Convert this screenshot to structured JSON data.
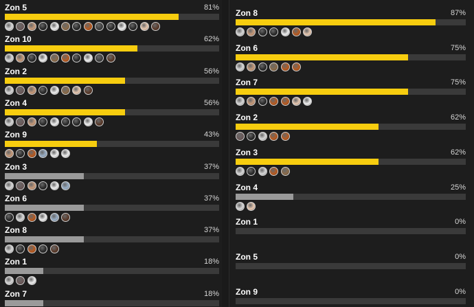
{
  "colors": {
    "background": "#1d1d1d",
    "bar_high": "#f7cd0f",
    "bar_low": "#9a9a9a",
    "track": "#3a3a3a",
    "avatar_palette": [
      "#d9d9d9",
      "#6b5a5a",
      "#c79a7a",
      "#2a2a2a",
      "#f0f0f0",
      "#8a6b4a",
      "#b85a20",
      "#404040",
      "#e8c8b0",
      "#5a3a2a",
      "#9ab0c8"
    ]
  },
  "left_column": {
    "zones": [
      {
        "name": "Zon 5",
        "percent_label": "81%",
        "value": 81,
        "avatars": [
          0,
          1,
          2,
          3,
          4,
          5,
          3,
          6,
          7,
          3,
          4,
          3,
          8,
          9
        ]
      },
      {
        "name": "Zon 10",
        "percent_label": "62%",
        "value": 62,
        "avatars": [
          0,
          2,
          3,
          4,
          5,
          6,
          3,
          4,
          7,
          9
        ]
      },
      {
        "name": "Zon 2",
        "percent_label": "56%",
        "value": 56,
        "avatars": [
          0,
          1,
          2,
          3,
          4,
          5,
          8,
          9
        ]
      },
      {
        "name": "Zon 4",
        "percent_label": "56%",
        "value": 56,
        "avatars": [
          0,
          1,
          2,
          3,
          4,
          3,
          3,
          4,
          9
        ]
      },
      {
        "name": "Zon 9",
        "percent_label": "43%",
        "value": 43,
        "avatars": [
          2,
          3,
          6,
          10,
          4,
          4
        ]
      },
      {
        "name": "Zon 3",
        "percent_label": "37%",
        "value": 37,
        "avatars": [
          0,
          1,
          2,
          3,
          4,
          10
        ]
      },
      {
        "name": "Zon 6",
        "percent_label": "37%",
        "value": 37,
        "avatars": [
          3,
          0,
          6,
          4,
          10,
          9
        ]
      },
      {
        "name": "Zon 8",
        "percent_label": "37%",
        "value": 37,
        "avatars": [
          0,
          3,
          6,
          3,
          9
        ]
      },
      {
        "name": "Zon 1",
        "percent_label": "18%",
        "value": 18,
        "avatars": [
          0,
          1,
          4
        ]
      },
      {
        "name": "Zon 7",
        "percent_label": "18%",
        "value": 18,
        "avatars": []
      }
    ]
  },
  "right_column": {
    "zones": [
      {
        "name": "Zon 8",
        "percent_label": "87%",
        "value": 87,
        "avatars": [
          0,
          2,
          3,
          3,
          4,
          6,
          8
        ]
      },
      {
        "name": "Zon 6",
        "percent_label": "75%",
        "value": 75,
        "avatars": [
          0,
          2,
          3,
          5,
          6,
          6
        ]
      },
      {
        "name": "Zon 7",
        "percent_label": "75%",
        "value": 75,
        "avatars": [
          0,
          2,
          3,
          6,
          6,
          8,
          4
        ]
      },
      {
        "name": "Zon 2",
        "percent_label": "62%",
        "value": 62,
        "avatars": [
          1,
          3,
          0,
          6,
          6
        ]
      },
      {
        "name": "Zon 3",
        "percent_label": "62%",
        "value": 62,
        "avatars": [
          0,
          3,
          0,
          6,
          5
        ]
      },
      {
        "name": "Zon 4",
        "percent_label": "25%",
        "value": 25,
        "avatars": [
          0,
          8
        ]
      },
      {
        "name": "Zon 1",
        "percent_label": "0%",
        "value": 0,
        "avatars": []
      },
      {
        "name": "Zon 5",
        "percent_label": "0%",
        "value": 0,
        "avatars": []
      },
      {
        "name": "Zon 9",
        "percent_label": "0%",
        "value": 0,
        "avatars": []
      }
    ]
  }
}
